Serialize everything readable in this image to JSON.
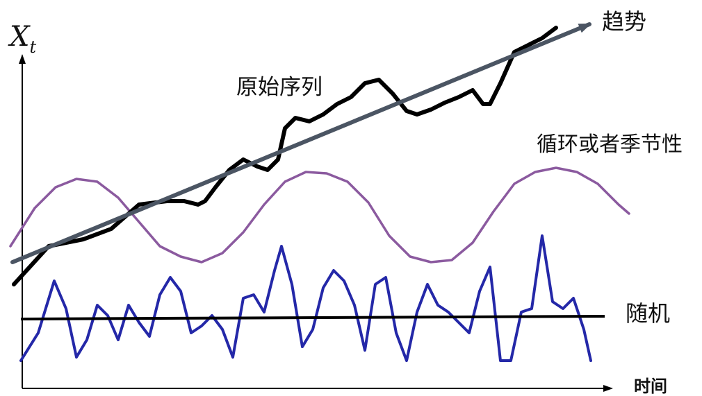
{
  "axes": {
    "y_label_main": "X",
    "y_label_sub": "t",
    "x_label": "时间"
  },
  "labels": {
    "trend": "趋势",
    "original_series": "原始序列",
    "seasonal": "循环或者季节性",
    "random": "随机"
  },
  "colors": {
    "axis": "#000000",
    "trend": "#4b5563",
    "original_series": "#000000",
    "seasonal": "#8b5a9f",
    "random": "#2428a8",
    "random_baseline": "#000000"
  },
  "series": {
    "original_series": {
      "x": [
        20,
        70,
        120,
        160,
        200,
        240,
        265,
        285,
        295,
        310,
        330,
        350,
        370,
        385,
        400,
        410,
        425,
        445,
        465,
        485,
        505,
        525,
        545,
        565,
        585,
        600,
        620,
        640,
        660,
        680,
        695,
        705,
        720,
        740,
        760,
        780,
        800
      ],
      "y": [
        410,
        355,
        345,
        330,
        295,
        290,
        290,
        295,
        290,
        270,
        245,
        230,
        240,
        245,
        230,
        185,
        170,
        175,
        165,
        150,
        140,
        120,
        115,
        135,
        160,
        165,
        158,
        148,
        140,
        130,
        150,
        150,
        120,
        75,
        65,
        55,
        40
      ]
    },
    "seasonal": {
      "x": [
        15,
        50,
        80,
        110,
        140,
        170,
        200,
        230,
        260,
        290,
        320,
        350,
        380,
        410,
        440,
        470,
        500,
        530,
        560,
        590,
        620,
        650,
        680,
        710,
        740,
        770,
        800,
        830,
        860,
        890,
        905
      ],
      "y": [
        355,
        300,
        270,
        258,
        262,
        285,
        320,
        355,
        370,
        378,
        365,
        335,
        295,
        262,
        248,
        250,
        262,
        292,
        340,
        370,
        378,
        375,
        350,
        305,
        265,
        248,
        242,
        248,
        265,
        295,
        308
      ]
    },
    "random": {
      "x": [
        30,
        55,
        78,
        95,
        110,
        125,
        140,
        155,
        170,
        185,
        200,
        215,
        230,
        245,
        260,
        275,
        290,
        305,
        320,
        335,
        350,
        365,
        380,
        395,
        405,
        420,
        435,
        450,
        465,
        480,
        495,
        510,
        525,
        540,
        555,
        570,
        585,
        600,
        615,
        630,
        645,
        660,
        675,
        690,
        705,
        720,
        735,
        750,
        765,
        780,
        795,
        810,
        825,
        840,
        850
      ],
      "y": [
        520,
        480,
        405,
        445,
        515,
        490,
        440,
        455,
        490,
        440,
        465,
        485,
        425,
        400,
        420,
        480,
        470,
        455,
        475,
        515,
        430,
        425,
        450,
        390,
        355,
        410,
        500,
        475,
        415,
        390,
        405,
        440,
        505,
        410,
        400,
        480,
        520,
        450,
        410,
        440,
        450,
        465,
        480,
        420,
        385,
        520,
        520,
        450,
        445,
        340,
        435,
        445,
        430,
        475,
        520
      ]
    },
    "random_baseline": {
      "x": [
        30,
        870
      ],
      "y": [
        460,
        456
      ]
    },
    "trend_arrow": {
      "x": [
        18,
        848
      ],
      "y": [
        378,
        35
      ]
    }
  }
}
